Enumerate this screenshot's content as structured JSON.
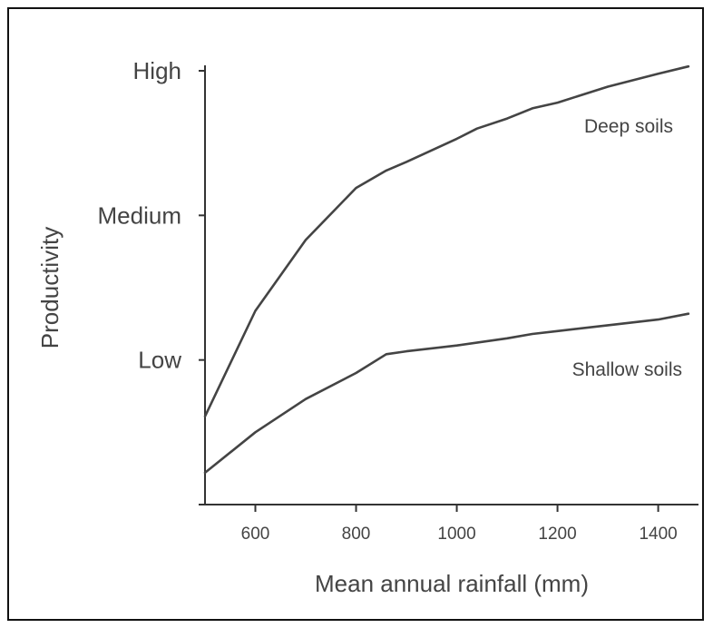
{
  "chart_data": {
    "type": "line",
    "xlabel": "Mean annual rainfall (mm)",
    "ylabel": "Productivity",
    "xlim": [
      500,
      1480
    ],
    "ylim": [
      0,
      3
    ],
    "x_ticks": [
      600,
      800,
      1000,
      1200,
      1400
    ],
    "x_tick_labels": [
      "600",
      "800",
      "1000",
      "1200",
      "1400"
    ],
    "y_ticks": [
      0,
      1,
      2,
      3
    ],
    "y_tick_labels": [
      "",
      "Low",
      "Medium",
      "High"
    ],
    "grid": false,
    "series": [
      {
        "name": "Deep soils",
        "color": "#444444",
        "points": [
          [
            500,
            0.61
          ],
          [
            600,
            1.34
          ],
          [
            700,
            1.83
          ],
          [
            800,
            2.19
          ],
          [
            860,
            2.31
          ],
          [
            900,
            2.37
          ],
          [
            1000,
            2.53
          ],
          [
            1040,
            2.6
          ],
          [
            1100,
            2.67
          ],
          [
            1150,
            2.74
          ],
          [
            1200,
            2.78
          ],
          [
            1300,
            2.89
          ],
          [
            1400,
            2.98
          ],
          [
            1460,
            3.03
          ]
        ]
      },
      {
        "name": "Shallow soils",
        "color": "#444444",
        "points": [
          [
            500,
            0.22
          ],
          [
            600,
            0.5
          ],
          [
            700,
            0.73
          ],
          [
            800,
            0.91
          ],
          [
            860,
            1.04
          ],
          [
            900,
            1.06
          ],
          [
            1000,
            1.1
          ],
          [
            1100,
            1.15
          ],
          [
            1150,
            1.18
          ],
          [
            1200,
            1.2
          ],
          [
            1300,
            1.24
          ],
          [
            1400,
            1.28
          ],
          [
            1460,
            1.32
          ]
        ]
      }
    ]
  }
}
